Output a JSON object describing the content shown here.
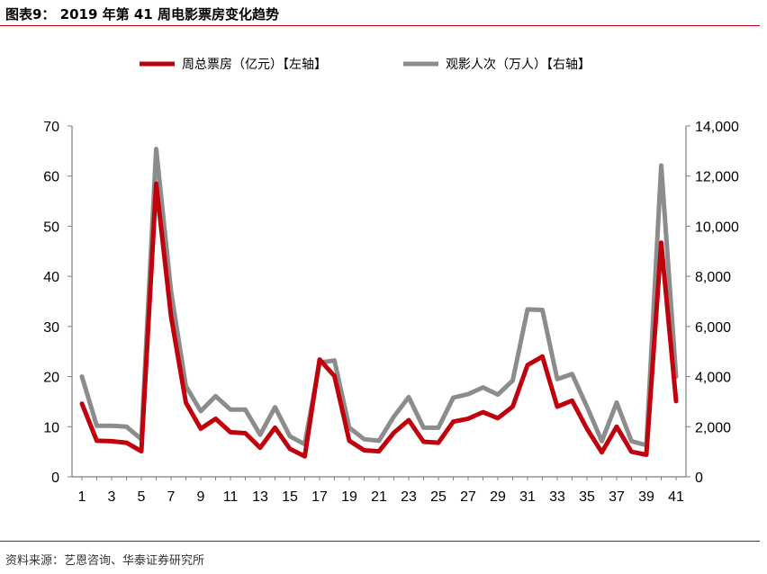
{
  "figure": {
    "title": "图表9：   2019 年第 41 周电影票房变化趋势",
    "source": "资料来源：艺恩咨询、华泰证券研究所"
  },
  "colors": {
    "box_office": "#c0000b",
    "admissions": "#8c8c8c",
    "rule": "#c0000b"
  },
  "chart_data": {
    "type": "line",
    "x": [
      1,
      2,
      3,
      4,
      5,
      6,
      7,
      8,
      9,
      10,
      11,
      12,
      13,
      14,
      15,
      16,
      17,
      18,
      19,
      20,
      21,
      22,
      23,
      24,
      25,
      26,
      27,
      28,
      29,
      30,
      31,
      32,
      33,
      34,
      35,
      36,
      37,
      38,
      39,
      40,
      41
    ],
    "x_tick_labels": [
      "1",
      "3",
      "5",
      "7",
      "9",
      "11",
      "13",
      "15",
      "17",
      "19",
      "21",
      "23",
      "25",
      "27",
      "29",
      "31",
      "33",
      "35",
      "37",
      "39",
      "41"
    ],
    "y_left": {
      "range": [
        0,
        70
      ],
      "ticks": [
        "0",
        "10",
        "20",
        "30",
        "40",
        "50",
        "60",
        "70"
      ]
    },
    "y_right": {
      "range": [
        0,
        14000
      ],
      "ticks": [
        "0",
        "2,000",
        "4,000",
        "6,000",
        "8,000",
        "10,000",
        "12,000",
        "14,000"
      ]
    },
    "legend_position": "top",
    "series": [
      {
        "name": "周总票房（亿元）【左轴】",
        "axis": "left",
        "values": [
          14.6,
          7.2,
          7.1,
          6.8,
          5.1,
          58.5,
          32.0,
          14.8,
          9.6,
          11.6,
          8.9,
          8.7,
          5.8,
          9.8,
          5.6,
          4.1,
          23.4,
          20.1,
          7.2,
          5.3,
          5.1,
          8.8,
          11.3,
          7.0,
          6.8,
          11.0,
          11.6,
          12.9,
          11.7,
          14.0,
          22.3,
          24.0,
          14.0,
          15.2,
          9.6,
          4.9,
          10.0,
          5.0,
          4.4,
          46.7,
          15.1
        ]
      },
      {
        "name": "观影人次（万人）【右轴】",
        "axis": "right",
        "values": [
          4000,
          2040,
          2040,
          2000,
          1500,
          13080,
          7400,
          3620,
          2620,
          3220,
          2680,
          2680,
          1680,
          2780,
          1620,
          1300,
          4560,
          4640,
          1960,
          1500,
          1440,
          2400,
          3180,
          1960,
          1960,
          3160,
          3300,
          3570,
          3280,
          3840,
          6680,
          6660,
          3900,
          4100,
          2800,
          1420,
          2960,
          1420,
          1260,
          12420,
          4000
        ]
      }
    ]
  }
}
